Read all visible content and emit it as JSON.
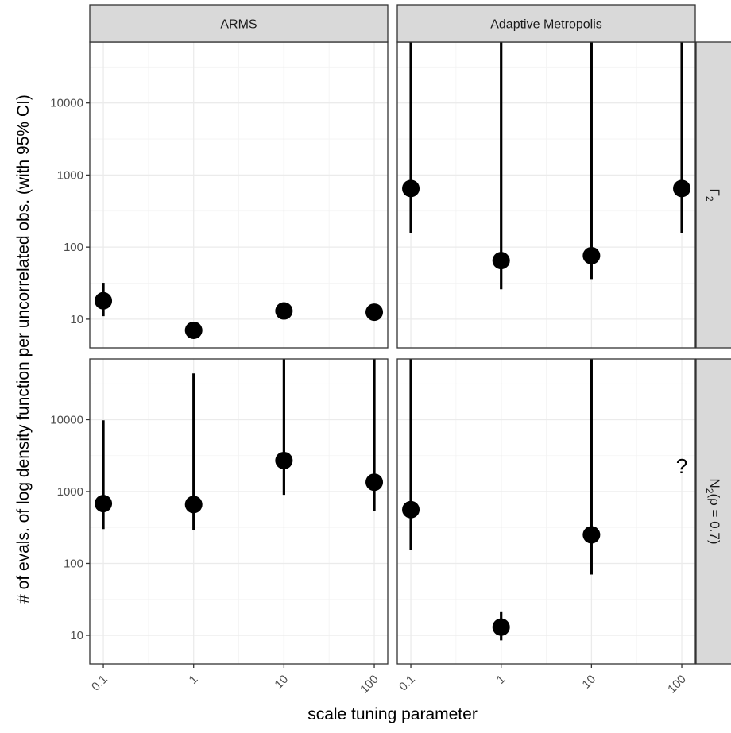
{
  "chart_data": {
    "type": "scatter",
    "xlabel": "scale tuning parameter",
    "ylabel": "# of evals. of log density function per uncorrelated obs. (with 95% CI)",
    "x_scale": "log",
    "y_scale": "log",
    "x_ticks": [
      "0.1",
      "1",
      "10",
      "100"
    ],
    "x_tick_values": [
      0.1,
      1,
      10,
      100
    ],
    "y_ticks": [
      "10",
      "100",
      "1000",
      "10000"
    ],
    "y_tick_values": [
      10,
      100,
      1000,
      10000
    ],
    "ylim": [
      4,
      70000
    ],
    "xlim": [
      0.0708,
      141
    ],
    "grid": true,
    "columns": [
      "ARMS",
      "Adaptive Metropolis"
    ],
    "rows": [
      {
        "base": "Γ",
        "sub": "2",
        "rest": ""
      },
      {
        "base": "N",
        "sub": "2",
        "rest": "(ρ = 0.7)"
      }
    ],
    "panels": [
      {
        "row": 0,
        "col": 0,
        "points": [
          {
            "x": 0.1,
            "y": 18,
            "lo": 11,
            "hi": 32
          },
          {
            "x": 1,
            "y": 7,
            "lo": 6,
            "hi": 9
          },
          {
            "x": 10,
            "y": 13,
            "lo": 11,
            "hi": 15
          },
          {
            "x": 100,
            "y": 12.5,
            "lo": 11,
            "hi": 14
          }
        ]
      },
      {
        "row": 0,
        "col": 1,
        "points": [
          {
            "x": 0.1,
            "y": 650,
            "lo": 155,
            "hi": 70000
          },
          {
            "x": 1,
            "y": 65,
            "lo": 26,
            "hi": 70000
          },
          {
            "x": 10,
            "y": 76,
            "lo": 36,
            "hi": 70000
          },
          {
            "x": 100,
            "y": 650,
            "lo": 155,
            "hi": 70000
          }
        ]
      },
      {
        "row": 1,
        "col": 0,
        "points": [
          {
            "x": 0.1,
            "y": 680,
            "lo": 300,
            "hi": 9800
          },
          {
            "x": 1,
            "y": 660,
            "lo": 290,
            "hi": 44000
          },
          {
            "x": 10,
            "y": 2700,
            "lo": 900,
            "hi": 70000
          },
          {
            "x": 100,
            "y": 1350,
            "lo": 540,
            "hi": 70000
          }
        ]
      },
      {
        "row": 1,
        "col": 1,
        "points": [
          {
            "x": 0.1,
            "y": 560,
            "lo": 155,
            "hi": 70000
          },
          {
            "x": 1,
            "y": 13,
            "lo": 8.5,
            "hi": 21
          },
          {
            "x": 10,
            "y": 250,
            "lo": 70,
            "hi": 70000
          }
        ],
        "annotation": {
          "text": "?",
          "x": 100,
          "y": 2300
        }
      }
    ]
  }
}
